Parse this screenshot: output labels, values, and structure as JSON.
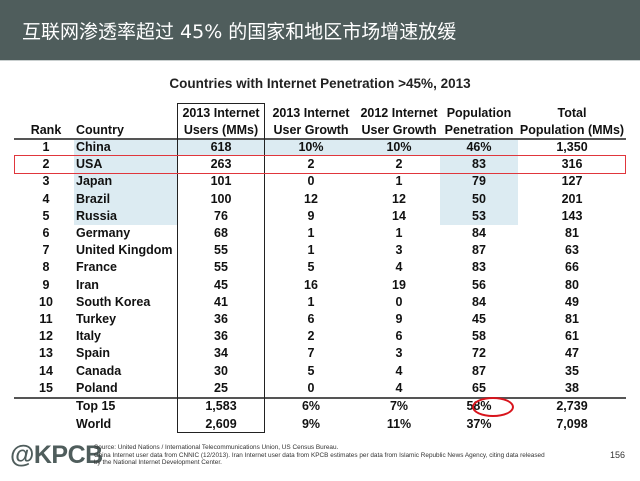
{
  "banner": {
    "title": "互联网渗透率超过 45% 的国家和地区市场增速放缓",
    "background_color": "#4f5d5c"
  },
  "chart_title": "Countries with Internet Penetration >45%, 2013",
  "table": {
    "headers": {
      "rank": [
        "",
        "Rank"
      ],
      "country": [
        "",
        "Country"
      ],
      "users_2013": [
        "2013 Internet",
        "Users (MMs)"
      ],
      "growth_2013": [
        "2013 Internet",
        "User Growth"
      ],
      "growth_2012": [
        "2012 Internet",
        "User Growth"
      ],
      "penetration": [
        "Population",
        "Penetration"
      ],
      "population": [
        "Total",
        "Population (MMs)"
      ]
    },
    "rows": [
      {
        "rank": "1",
        "country": "China",
        "users_2013": "618",
        "growth_2013": "10%",
        "growth_2012": "10%",
        "penetration": "46%",
        "population": "1,350"
      },
      {
        "rank": "2",
        "country": "USA",
        "users_2013": "263",
        "growth_2013": "2",
        "growth_2012": "2",
        "penetration": "83",
        "population": "316"
      },
      {
        "rank": "3",
        "country": "Japan",
        "users_2013": "101",
        "growth_2013": "0",
        "growth_2012": "1",
        "penetration": "79",
        "population": "127"
      },
      {
        "rank": "4",
        "country": "Brazil",
        "users_2013": "100",
        "growth_2013": "12",
        "growth_2012": "12",
        "penetration": "50",
        "population": "201"
      },
      {
        "rank": "5",
        "country": "Russia",
        "users_2013": "76",
        "growth_2013": "9",
        "growth_2012": "14",
        "penetration": "53",
        "population": "143"
      },
      {
        "rank": "6",
        "country": "Germany",
        "users_2013": "68",
        "growth_2013": "1",
        "growth_2012": "1",
        "penetration": "84",
        "population": "81"
      },
      {
        "rank": "7",
        "country": "United Kingdom",
        "users_2013": "55",
        "growth_2013": "1",
        "growth_2012": "3",
        "penetration": "87",
        "population": "63"
      },
      {
        "rank": "8",
        "country": "France",
        "users_2013": "55",
        "growth_2013": "5",
        "growth_2012": "4",
        "penetration": "83",
        "population": "66"
      },
      {
        "rank": "9",
        "country": "Iran",
        "users_2013": "45",
        "growth_2013": "16",
        "growth_2012": "19",
        "penetration": "56",
        "population": "80"
      },
      {
        "rank": "10",
        "country": "South Korea",
        "users_2013": "41",
        "growth_2013": "1",
        "growth_2012": "0",
        "penetration": "84",
        "population": "49"
      },
      {
        "rank": "11",
        "country": "Turkey",
        "users_2013": "36",
        "growth_2013": "6",
        "growth_2012": "9",
        "penetration": "45",
        "population": "81"
      },
      {
        "rank": "12",
        "country": "Italy",
        "users_2013": "36",
        "growth_2013": "2",
        "growth_2012": "6",
        "penetration": "58",
        "population": "61"
      },
      {
        "rank": "13",
        "country": "Spain",
        "users_2013": "34",
        "growth_2013": "7",
        "growth_2012": "3",
        "penetration": "72",
        "population": "47"
      },
      {
        "rank": "14",
        "country": "Canada",
        "users_2013": "30",
        "growth_2013": "5",
        "growth_2012": "4",
        "penetration": "87",
        "population": "35"
      },
      {
        "rank": "15",
        "country": "Poland",
        "users_2013": "25",
        "growth_2013": "0",
        "growth_2012": "4",
        "penetration": "65",
        "population": "38"
      }
    ],
    "totals": [
      {
        "rank": "",
        "country": "Top 15",
        "users_2013": "1,583",
        "growth_2013": "6%",
        "growth_2012": "7%",
        "penetration": "58%",
        "population": "2,739"
      },
      {
        "rank": "",
        "country": "World",
        "users_2013": "2,609",
        "growth_2013": "9%",
        "growth_2012": "11%",
        "penetration": "37%",
        "population": "7,098"
      }
    ],
    "highlighted_row": "USA",
    "circled_value": "58%",
    "shade_color": "#dcebf2",
    "highlight_color": "#e0363c"
  },
  "footer": {
    "logo": "@KPCB",
    "source_lines": [
      "Source: United Nations / International Telecommunications Union, US Census Bureau.",
      "China Internet user data from CNNIC (12/2013). Iran Internet user data from KPCB estimates per data from Islamic Republic News Agency, citing data released",
      "by the National Internet Development Center."
    ],
    "page_number": "156"
  }
}
